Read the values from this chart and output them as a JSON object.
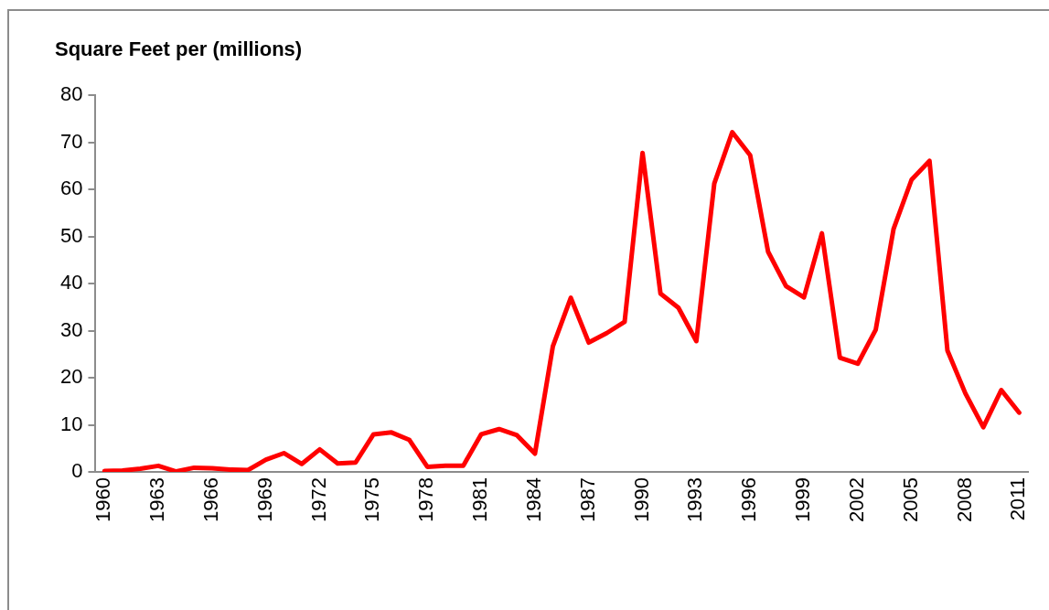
{
  "chart_data": {
    "type": "line",
    "title": "Square Feet per (millions)",
    "categories": [
      "1960",
      null,
      null,
      "1963",
      null,
      null,
      "1966",
      null,
      null,
      "1969",
      null,
      null,
      "1972",
      null,
      null,
      "1975",
      null,
      null,
      "1978",
      null,
      null,
      "1981",
      null,
      null,
      "1984",
      null,
      null,
      "1987",
      null,
      null,
      "1990",
      null,
      null,
      "1993",
      null,
      null,
      "1996",
      null,
      null,
      "1999",
      null,
      null,
      "2002",
      null,
      null,
      "2005",
      null,
      null,
      "2008",
      null,
      null,
      "2011"
    ],
    "series": [
      {
        "color": "#ff0000",
        "values": [
          0.2,
          0.3,
          0.7,
          1.3,
          0.1,
          0.9,
          0.8,
          0.5,
          0.4,
          2.6,
          4,
          1.7,
          4.8,
          1.8,
          2,
          8,
          8.4,
          6.8,
          1.1,
          1.3,
          1.3,
          8,
          9.1,
          7.8,
          3.9,
          26.7,
          37,
          27.5,
          29.5,
          31.9,
          67.8,
          37.9,
          34.9,
          27.8,
          61.3,
          72.2,
          67.3,
          46.8,
          39.5,
          37.1,
          50.7,
          24.3,
          23,
          30.2,
          51.7,
          62.1,
          66.1,
          25.8,
          16.7,
          9.5,
          17.4,
          12.6
        ]
      }
    ],
    "ylim": [
      0,
      80
    ],
    "yticks": [
      0,
      10,
      20,
      30,
      40,
      50,
      60,
      70,
      80
    ],
    "grid": false,
    "legend": false,
    "marker": "none",
    "line_style": "solid"
  }
}
